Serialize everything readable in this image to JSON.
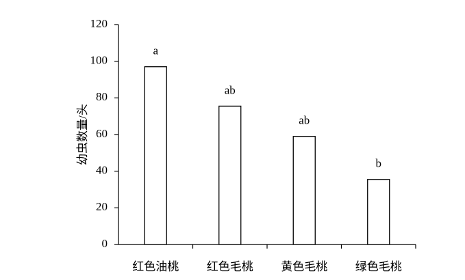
{
  "chart_data": {
    "type": "bar",
    "y_label": "幼虫数量/头",
    "categories": [
      "红色油桃",
      "红色毛桃",
      "黄色毛桃",
      "绿色毛桃"
    ],
    "values": [
      97,
      75.5,
      59,
      35.5
    ],
    "annotations": [
      "a",
      "ab",
      "ab",
      "b"
    ],
    "color": "#ffffff",
    "ylim": [
      0,
      120
    ],
    "yticks": [
      0,
      20,
      40,
      60,
      80,
      100,
      120
    ],
    "grid": false
  }
}
